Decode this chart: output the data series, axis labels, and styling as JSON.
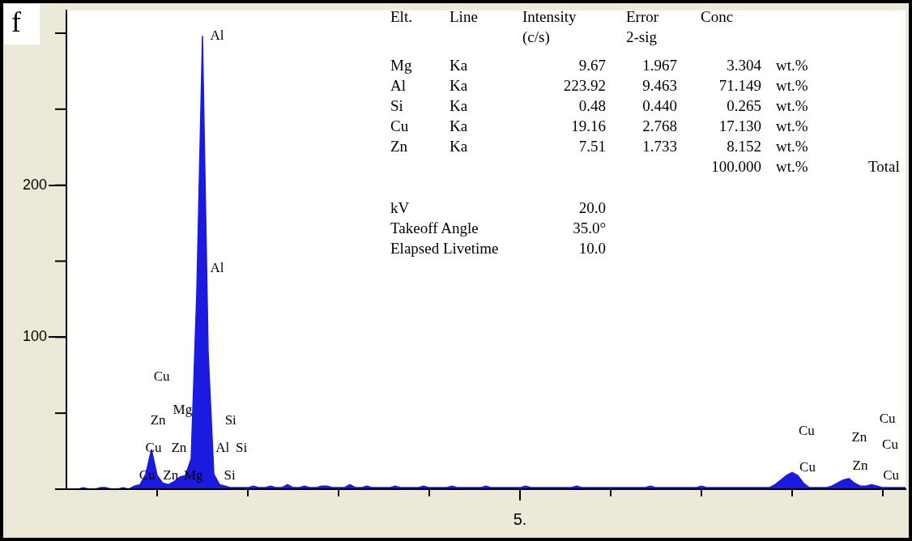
{
  "chart_data": {
    "type": "area",
    "categories": [
      null,
      null,
      null,
      null,
      null,
      null,
      null,
      null,
      null,
      null,
      null,
      null,
      null,
      null,
      null,
      null,
      null,
      null,
      null,
      null,
      null,
      null,
      null,
      null,
      null,
      null,
      null,
      null,
      null,
      null,
      null,
      null,
      null,
      null,
      null,
      null,
      null,
      null,
      null,
      null,
      null,
      null,
      null,
      null,
      null,
      null,
      null,
      null,
      null,
      null,
      null,
      null,
      null,
      null,
      null,
      null,
      null,
      null,
      null,
      null,
      null,
      null,
      null,
      null,
      null,
      null,
      null,
      null,
      null,
      null,
      null,
      null,
      null,
      null,
      null,
      null,
      null,
      null,
      null,
      null,
      null,
      null,
      null,
      null,
      null,
      null,
      null,
      null,
      null,
      null,
      null,
      null,
      null,
      null,
      null,
      null,
      null,
      null,
      null,
      null,
      null,
      null,
      null,
      null,
      null,
      null,
      null,
      null,
      null,
      null,
      null,
      null,
      null,
      null,
      null,
      null,
      null,
      null,
      null,
      null,
      null,
      null,
      null,
      null,
      null,
      null,
      null,
      null,
      null,
      null,
      null,
      null,
      null,
      null,
      null,
      null,
      null,
      null,
      null,
      null,
      null,
      null,
      null,
      null,
      null,
      null,
      null,
      null,
      null
    ],
    "series": [
      {
        "color": "#1a1ae0",
        "values": [
          0,
          0,
          0,
          1,
          0,
          0,
          1,
          1,
          0,
          0,
          1,
          0,
          2,
          3,
          10,
          26,
          9,
          4,
          3,
          5,
          8,
          9,
          20,
          130,
          298,
          90,
          10,
          3,
          2,
          1,
          1,
          1,
          1,
          2,
          1,
          1,
          2,
          1,
          1,
          3,
          1,
          1,
          2,
          1,
          1,
          2,
          2,
          1,
          1,
          1,
          3,
          1,
          1,
          2,
          1,
          1,
          1,
          1,
          2,
          1,
          1,
          1,
          1,
          2,
          1,
          1,
          1,
          1,
          2,
          1,
          1,
          1,
          1,
          1,
          2,
          1,
          1,
          1,
          1,
          1,
          1,
          2,
          1,
          1,
          1,
          1,
          1,
          1,
          1,
          1,
          2,
          1,
          1,
          1,
          1,
          1,
          1,
          1,
          1,
          1,
          1,
          1,
          1,
          2,
          1,
          1,
          1,
          1,
          1,
          1,
          1,
          1,
          2,
          1,
          1,
          1,
          1,
          1,
          1,
          1,
          1,
          1,
          1,
          1,
          1,
          3,
          6,
          9,
          11,
          9,
          4,
          1,
          1,
          1,
          1,
          2,
          4,
          6,
          7,
          4,
          2,
          2,
          3,
          2,
          1,
          1,
          1,
          1,
          1
        ]
      }
    ],
    "ylim": [
      0,
      315
    ],
    "yticks": [
      100,
      200
    ],
    "grid": false,
    "annotations": [
      "f",
      "Elt.\tLine\tIntensity\tError\tConc",
      "\t\t(c/s)\t2-sig",
      "Mg\tKa\t9.67\t1.967\t3.304\twt.%",
      "Al\tKa\t223.92\t9.463\t71.149\twt.%",
      "Si\tKa\t0.48\t0.440\t0.265\twt.%",
      "Cu\tKa\t19.16\t2.768\t17.130\twt.%",
      "Zn\tKa\t7.51\t1.733\t8.152\twt.%",
      "\t\t\t\t100.000\twt.%\tTotal",
      "kV\t\t20.0",
      "Takeoff Angle\t\t35.0°",
      "Elapsed Livetime\t\t10.0",
      "5.",
      "Al",
      "Al",
      "Cu",
      "Mg",
      "Zn",
      "Si",
      "Cu",
      "Zn",
      "Al",
      "Si",
      "Cu",
      "Zn",
      "Mg",
      "Si",
      "Cu",
      "Cu",
      "Cu",
      "Zn",
      "Cu",
      "Zn",
      "Cu"
    ]
  }
}
